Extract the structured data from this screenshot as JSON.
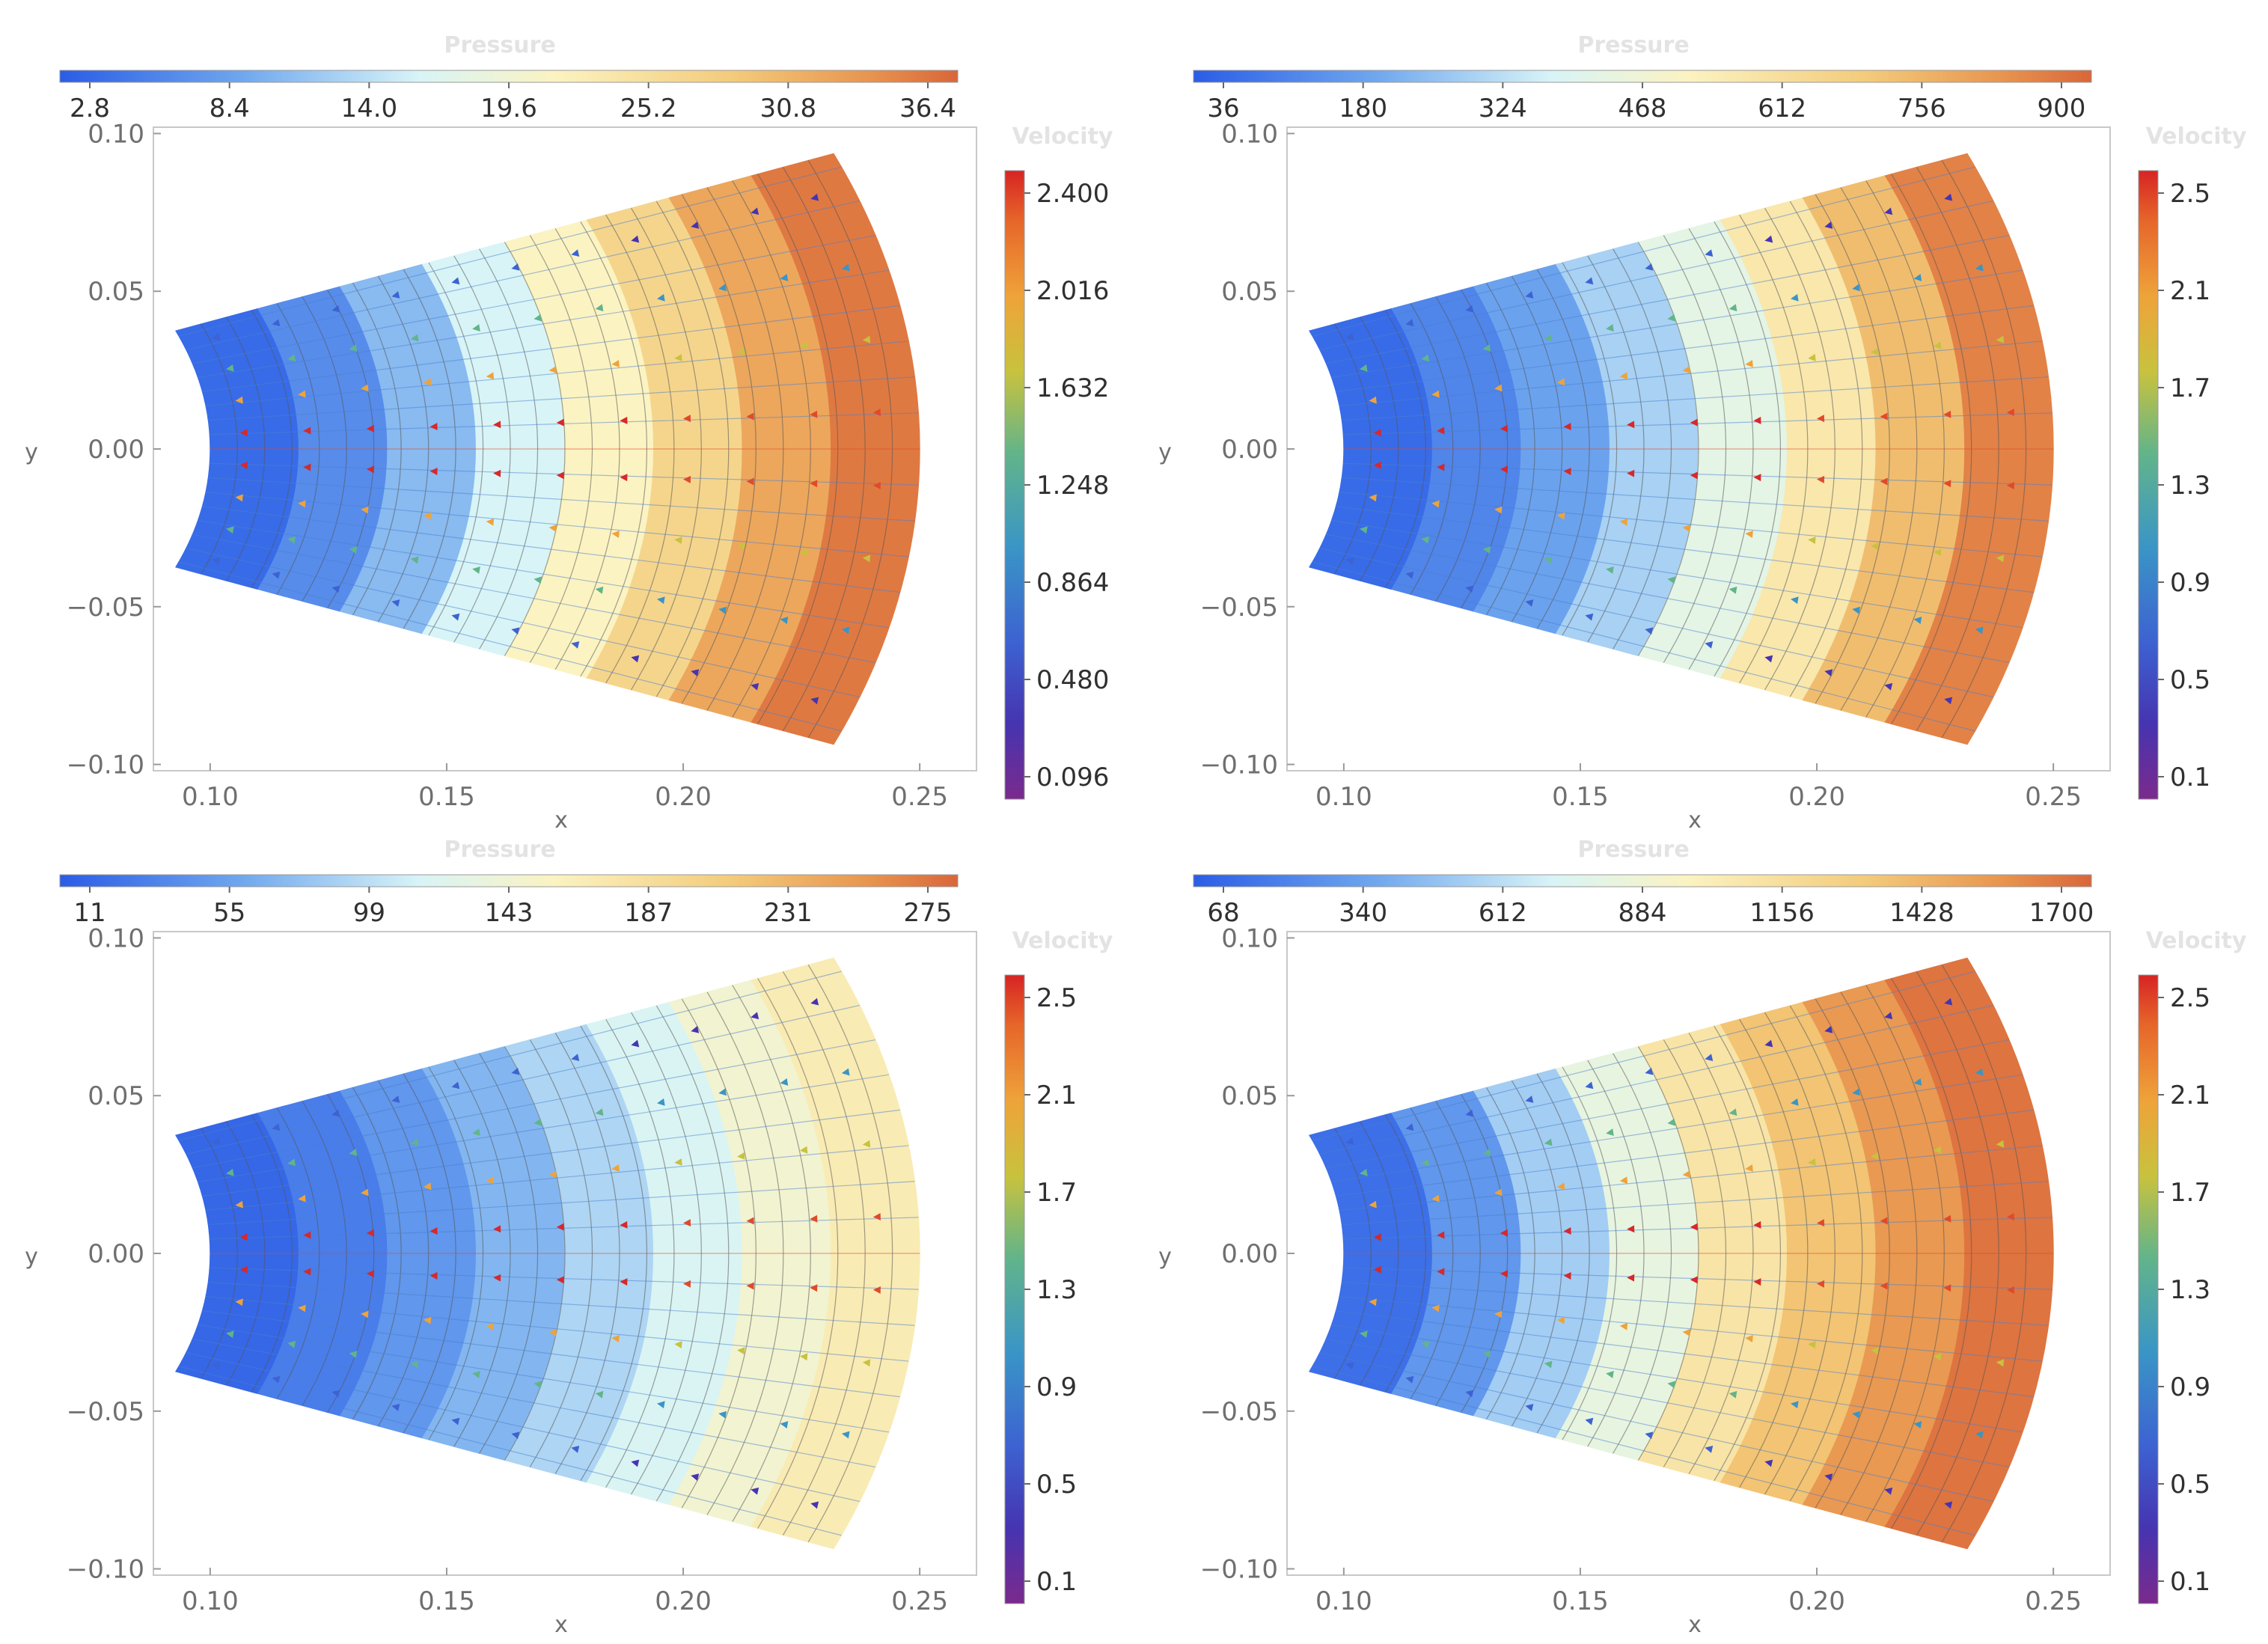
{
  "chart_data": [
    {
      "type": "contour",
      "pressure_label": "Pressure",
      "pressure_ticks": [
        "2.8",
        "8.4",
        "14.0",
        "19.6",
        "25.2",
        "30.8",
        "36.4"
      ],
      "velocity_label": "Velocity",
      "velocity_ticks": [
        "2.400",
        "2.016",
        "1.632",
        "1.248",
        "0.864",
        "0.480",
        "0.096"
      ],
      "xlabel": "x",
      "ylabel": "y",
      "x_ticks": [
        "0.10",
        "0.15",
        "0.20",
        "0.25"
      ],
      "y_ticks": [
        "0.10",
        "0.05",
        "0.00",
        "−0.05",
        "−0.10"
      ],
      "xlim": [
        0.088,
        0.262
      ],
      "ylim": [
        -0.102,
        0.102
      ],
      "field_stops": [
        0.0,
        0.08,
        0.18,
        0.32,
        0.48,
        0.62,
        0.78,
        0.92,
        1.0
      ]
    },
    {
      "type": "contour",
      "pressure_label": "Pressure",
      "pressure_ticks": [
        "36",
        "180",
        "324",
        "468",
        "612",
        "756",
        "900"
      ],
      "velocity_label": "Velocity",
      "velocity_ticks": [
        "2.5",
        "2.1",
        "1.7",
        "1.3",
        "0.9",
        "0.5",
        "0.1"
      ],
      "xlabel": "x",
      "ylabel": "y",
      "x_ticks": [
        "0.10",
        "0.15",
        "0.20",
        "0.25"
      ],
      "y_ticks": [
        "0.10",
        "0.05",
        "0.00",
        "−0.05",
        "−0.10"
      ],
      "xlim": [
        0.088,
        0.262
      ],
      "ylim": [
        -0.102,
        0.102
      ],
      "field_stops": [
        0.0,
        0.08,
        0.14,
        0.24,
        0.38,
        0.52,
        0.7,
        0.88,
        1.0
      ]
    },
    {
      "type": "contour",
      "pressure_label": "Pressure",
      "pressure_ticks": [
        "11",
        "55",
        "99",
        "143",
        "187",
        "231",
        "275"
      ],
      "velocity_label": "Velocity",
      "velocity_ticks": [
        "2.5",
        "2.1",
        "1.7",
        "1.3",
        "0.9",
        "0.5",
        "0.1"
      ],
      "xlabel": "x",
      "ylabel": "y",
      "x_ticks": [
        "0.10",
        "0.15",
        "0.20",
        "0.25"
      ],
      "y_ticks": [
        "0.10",
        "0.05",
        "0.00",
        "−0.05",
        "−0.10"
      ],
      "xlim": [
        0.088,
        0.262
      ],
      "ylim": [
        -0.102,
        0.102
      ],
      "field_stops": [
        0.0,
        0.06,
        0.12,
        0.2,
        0.28,
        0.36,
        0.46,
        0.56,
        0.62
      ]
    },
    {
      "type": "contour",
      "pressure_label": "Pressure",
      "pressure_ticks": [
        "68",
        "340",
        "612",
        "884",
        "1156",
        "1428",
        "1700"
      ],
      "velocity_label": "Velocity",
      "velocity_ticks": [
        "2.5",
        "2.1",
        "1.7",
        "1.3",
        "0.9",
        "0.5",
        "0.1"
      ],
      "xlabel": "x",
      "ylabel": "y",
      "x_ticks": [
        "0.10",
        "0.15",
        "0.20",
        "0.25"
      ],
      "y_ticks": [
        "0.10",
        "0.05",
        "0.00",
        "−0.05",
        "−0.10"
      ],
      "xlim": [
        0.088,
        0.262
      ],
      "ylim": [
        -0.102,
        0.102
      ],
      "field_stops": [
        0.0,
        0.1,
        0.22,
        0.38,
        0.55,
        0.7,
        0.84,
        0.94,
        1.0
      ]
    }
  ]
}
